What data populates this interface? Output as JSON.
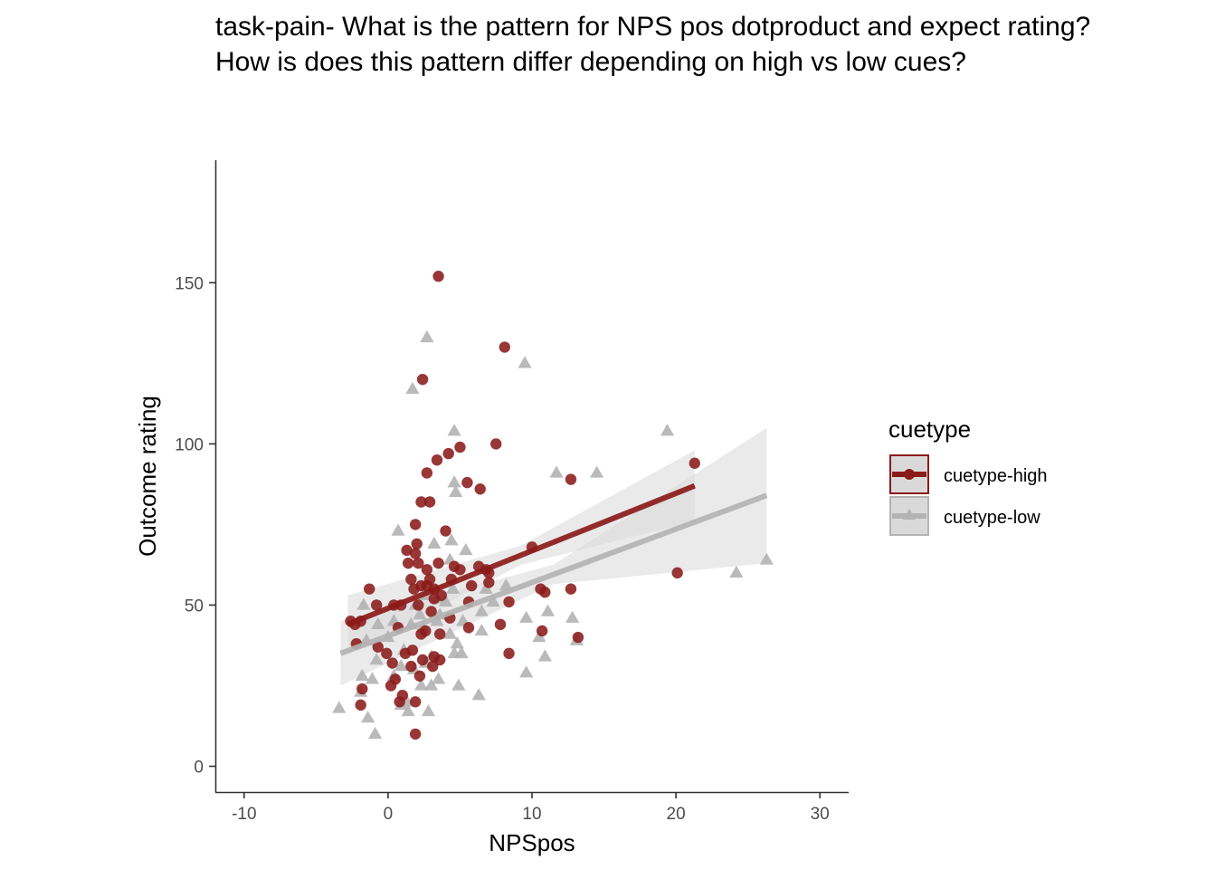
{
  "title_lines": [
    "task-pain- What is the pattern for NPS pos dotproduct and expect rating?",
    "How is does this pattern differ depending on high vs low cues?"
  ],
  "colors": {
    "high": "#8B1A1A",
    "low": "#B3B3B3",
    "ribbon": "#D9D9D9",
    "axis": "#333333"
  },
  "chart_data": {
    "type": "scatter",
    "xlabel": "NPSpos",
    "ylabel": "Outcome rating",
    "xlim": [
      -12,
      32
    ],
    "ylim": [
      -8,
      188
    ],
    "xticks": [
      -10,
      0,
      10,
      20,
      30
    ],
    "yticks": [
      0,
      50,
      100,
      150
    ],
    "legend": {
      "title": "cuetype",
      "position": "right"
    },
    "series": [
      {
        "name": "cuetype-high",
        "marker": "circle",
        "color": "#8B1A1A",
        "fit": {
          "x": [
            -2.8,
            21.3
          ],
          "y": [
            44,
            87
          ]
        },
        "points": [
          [
            3.5,
            152
          ],
          [
            8.1,
            130
          ],
          [
            2.4,
            120
          ],
          [
            7.5,
            100
          ],
          [
            5.0,
            99
          ],
          [
            4.2,
            97
          ],
          [
            3.4,
            95
          ],
          [
            2.7,
            91
          ],
          [
            21.3,
            94
          ],
          [
            12.7,
            89
          ],
          [
            5.5,
            88
          ],
          [
            6.4,
            86
          ],
          [
            2.3,
            82
          ],
          [
            2.9,
            82
          ],
          [
            1.9,
            75
          ],
          [
            4.0,
            73
          ],
          [
            2.0,
            69
          ],
          [
            1.3,
            67
          ],
          [
            1.9,
            66
          ],
          [
            10.0,
            68
          ],
          [
            2.1,
            63
          ],
          [
            1.4,
            63
          ],
          [
            3.5,
            63
          ],
          [
            2.7,
            61
          ],
          [
            4.6,
            62
          ],
          [
            5.0,
            61
          ],
          [
            6.3,
            62
          ],
          [
            6.8,
            61
          ],
          [
            7.0,
            60
          ],
          [
            20.1,
            60
          ],
          [
            1.6,
            58
          ],
          [
            2.9,
            58
          ],
          [
            4.4,
            58
          ],
          [
            5.8,
            56
          ],
          [
            7.0,
            57
          ],
          [
            2.3,
            56
          ],
          [
            2.7,
            56
          ],
          [
            3.2,
            55
          ],
          [
            1.8,
            55
          ],
          [
            -1.3,
            55
          ],
          [
            12.7,
            55
          ],
          [
            10.6,
            55
          ],
          [
            10.9,
            54
          ],
          [
            3.7,
            53
          ],
          [
            3.2,
            52
          ],
          [
            2.1,
            50
          ],
          [
            0.4,
            50
          ],
          [
            0.9,
            50
          ],
          [
            -0.8,
            50
          ],
          [
            5.6,
            51
          ],
          [
            8.4,
            51
          ],
          [
            3.0,
            48
          ],
          [
            4.3,
            46
          ],
          [
            -1.9,
            45
          ],
          [
            -2.6,
            45
          ],
          [
            -2.3,
            44
          ],
          [
            0.7,
            43
          ],
          [
            5.6,
            43
          ],
          [
            7.8,
            44
          ],
          [
            10.7,
            42
          ],
          [
            2.6,
            42
          ],
          [
            2.3,
            41
          ],
          [
            3.6,
            41
          ],
          [
            13.2,
            40
          ],
          [
            -2.2,
            38
          ],
          [
            -0.7,
            37
          ],
          [
            1.7,
            36
          ],
          [
            8.4,
            35
          ],
          [
            1.2,
            35
          ],
          [
            -0.1,
            35
          ],
          [
            3.2,
            34
          ],
          [
            3.6,
            33
          ],
          [
            2.4,
            33
          ],
          [
            0.3,
            32
          ],
          [
            1.6,
            31
          ],
          [
            3.1,
            31
          ],
          [
            2.2,
            28
          ],
          [
            0.5,
            27
          ],
          [
            0.2,
            25
          ],
          [
            -1.8,
            24
          ],
          [
            1.0,
            22
          ],
          [
            0.8,
            20
          ],
          [
            1.9,
            20
          ],
          [
            -1.9,
            19
          ],
          [
            1.9,
            10
          ]
        ]
      },
      {
        "name": "cuetype-low",
        "marker": "triangle",
        "color": "#B3B3B3",
        "fit": {
          "x": [
            -3.3,
            26.3
          ],
          "y": [
            35,
            84
          ]
        },
        "points": [
          [
            2.7,
            133
          ],
          [
            9.5,
            125
          ],
          [
            1.7,
            117
          ],
          [
            19.4,
            104
          ],
          [
            4.6,
            104
          ],
          [
            11.7,
            91
          ],
          [
            14.5,
            91
          ],
          [
            4.6,
            88
          ],
          [
            4.7,
            85
          ],
          [
            0.7,
            73
          ],
          [
            4.4,
            70
          ],
          [
            3.2,
            69
          ],
          [
            5.4,
            67
          ],
          [
            4.3,
            64
          ],
          [
            24.2,
            60
          ],
          [
            26.3,
            64
          ],
          [
            8.2,
            56
          ],
          [
            4.5,
            55
          ],
          [
            6.8,
            55
          ],
          [
            2.6,
            53
          ],
          [
            3.4,
            52
          ],
          [
            4.0,
            51
          ],
          [
            7.3,
            51
          ],
          [
            1.9,
            50
          ],
          [
            -1.7,
            50
          ],
          [
            6.5,
            48
          ],
          [
            11.1,
            48
          ],
          [
            2.2,
            47
          ],
          [
            3.6,
            47
          ],
          [
            9.6,
            46
          ],
          [
            12.8,
            46
          ],
          [
            0.4,
            45
          ],
          [
            3.4,
            45
          ],
          [
            5.2,
            45
          ],
          [
            -0.7,
            44
          ],
          [
            1.6,
            44
          ],
          [
            2.4,
            43
          ],
          [
            6.5,
            42
          ],
          [
            4.3,
            41
          ],
          [
            10.5,
            40
          ],
          [
            0.0,
            40
          ],
          [
            -1.5,
            39
          ],
          [
            4.8,
            38
          ],
          [
            13.1,
            39
          ],
          [
            1.1,
            36
          ],
          [
            4.6,
            35
          ],
          [
            5.1,
            35
          ],
          [
            3.0,
            34
          ],
          [
            10.9,
            34
          ],
          [
            -0.8,
            33
          ],
          [
            2.6,
            32
          ],
          [
            0.9,
            31
          ],
          [
            1.8,
            30
          ],
          [
            9.6,
            29
          ],
          [
            0.4,
            28
          ],
          [
            -1.8,
            28
          ],
          [
            -1.1,
            27
          ],
          [
            3.5,
            27
          ],
          [
            2.3,
            25
          ],
          [
            3.0,
            25
          ],
          [
            4.9,
            25
          ],
          [
            -1.9,
            23
          ],
          [
            1.3,
            20
          ],
          [
            0.9,
            19
          ],
          [
            6.3,
            22
          ],
          [
            1.4,
            17
          ],
          [
            2.8,
            17
          ],
          [
            -3.4,
            18
          ],
          [
            -1.4,
            15
          ],
          [
            -0.9,
            10
          ]
        ]
      }
    ]
  }
}
